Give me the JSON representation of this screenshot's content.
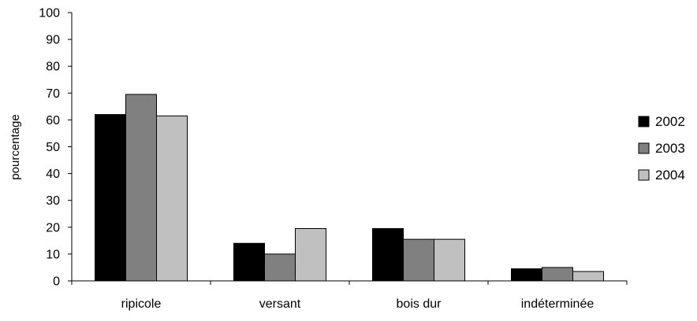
{
  "chart_data": {
    "type": "bar",
    "title": "",
    "xlabel": "",
    "ylabel": "pourcentage",
    "ylim": [
      0,
      100
    ],
    "yticks": [
      0,
      10,
      20,
      30,
      40,
      50,
      60,
      70,
      80,
      90,
      100
    ],
    "categories": [
      "ripicole",
      "versant",
      "bois dur",
      "indéterminée"
    ],
    "series": [
      {
        "name": "2002",
        "color": "#000000",
        "values": [
          62,
          14,
          19.5,
          4.5
        ]
      },
      {
        "name": "2003",
        "color": "#808080",
        "values": [
          69.5,
          10,
          15.5,
          5
        ]
      },
      {
        "name": "2004",
        "color": "#c0c0c0",
        "values": [
          61.5,
          19.5,
          15.5,
          3.5
        ]
      }
    ],
    "grid": false,
    "legend": "right"
  }
}
